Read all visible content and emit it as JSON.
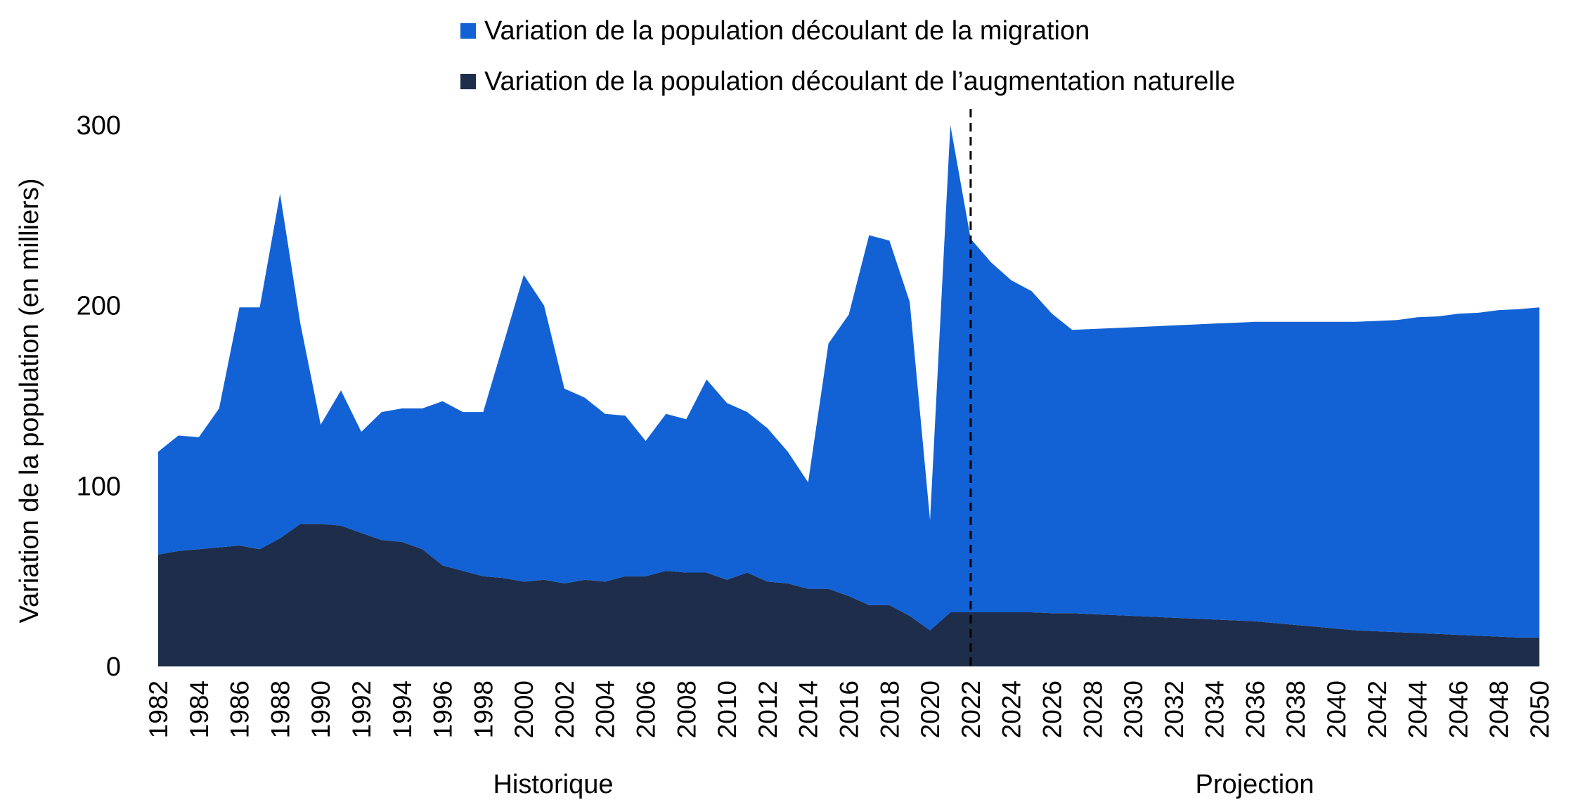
{
  "chart_data": {
    "type": "area",
    "stacked": true,
    "ylabel": "Variation de la population (en milliers)",
    "xlabel": "",
    "ylim": [
      0,
      300
    ],
    "yticks": [
      0,
      100,
      200,
      300
    ],
    "grid": false,
    "legend_position": "top",
    "x": [
      1982,
      1983,
      1984,
      1985,
      1986,
      1987,
      1988,
      1989,
      1990,
      1991,
      1992,
      1993,
      1994,
      1995,
      1996,
      1997,
      1998,
      1999,
      2000,
      2001,
      2002,
      2003,
      2004,
      2005,
      2006,
      2007,
      2008,
      2009,
      2010,
      2011,
      2012,
      2013,
      2014,
      2015,
      2016,
      2017,
      2018,
      2019,
      2020,
      2021,
      2022,
      2023,
      2024,
      2025,
      2026,
      2027,
      2028,
      2029,
      2030,
      2031,
      2032,
      2033,
      2034,
      2035,
      2036,
      2037,
      2038,
      2039,
      2040,
      2041,
      2042,
      2043,
      2044,
      2045,
      2046,
      2047,
      2048,
      2049,
      2050
    ],
    "xticks": [
      1982,
      1984,
      1986,
      1988,
      1990,
      1992,
      1994,
      1996,
      1998,
      2000,
      2002,
      2004,
      2006,
      2008,
      2010,
      2012,
      2014,
      2016,
      2018,
      2020,
      2022,
      2024,
      2026,
      2028,
      2030,
      2032,
      2034,
      2036,
      2038,
      2040,
      2042,
      2044,
      2046,
      2048,
      2050
    ],
    "series": [
      {
        "name": "Variation de la population découlant de l’augmentation naturelle",
        "color": "#1e2d4a",
        "values": [
          62,
          64,
          65,
          66,
          67,
          65,
          71,
          79,
          79,
          78,
          74,
          70,
          69,
          65,
          56,
          53,
          50,
          49,
          47,
          48,
          46,
          48,
          47,
          50,
          50,
          53,
          52,
          52,
          48,
          52,
          47,
          46,
          43,
          43,
          39,
          34,
          34,
          28,
          20,
          30,
          30,
          30,
          30,
          30,
          29.5,
          29.5,
          29,
          28.5,
          28,
          27.5,
          27,
          26.5,
          26,
          25.5,
          25,
          24,
          23,
          22,
          21,
          20,
          19.5,
          19,
          18.5,
          18,
          17.5,
          17,
          16.5,
          16,
          16
        ]
      },
      {
        "name": "Variation de la population découlant de la migration",
        "color": "#1262d6",
        "values": [
          57,
          64,
          62,
          77,
          132,
          134,
          191,
          111,
          55,
          75,
          56,
          71,
          74,
          78,
          91,
          88,
          91,
          130,
          170,
          152,
          108,
          101,
          93,
          89,
          75,
          87,
          85,
          107,
          98,
          89,
          85,
          73,
          59,
          136,
          156,
          205,
          202,
          174,
          61,
          270,
          207,
          194,
          184,
          178,
          166,
          157,
          158,
          159,
          160,
          161,
          162,
          163,
          164,
          165,
          166,
          167,
          168,
          169,
          170,
          171,
          172,
          173,
          175,
          176,
          178,
          179,
          181,
          182,
          183
        ]
      }
    ],
    "annotations": {
      "vline_year": 2022,
      "historique_label": "Historique",
      "projection_label": "Projection"
    }
  }
}
